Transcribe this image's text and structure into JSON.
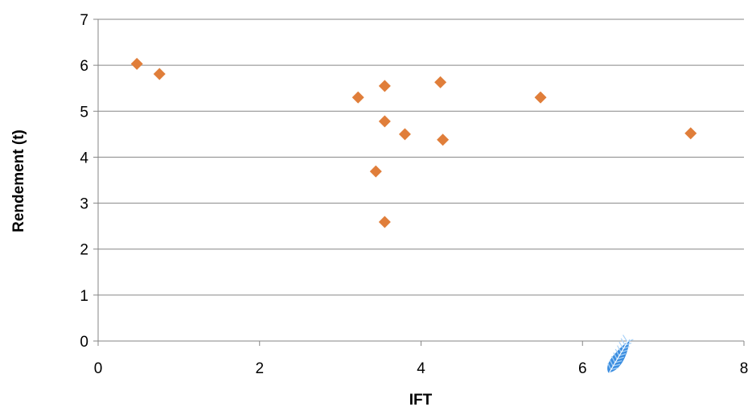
{
  "chart_data": {
    "type": "scatter",
    "title": "",
    "xlabel": "IFT",
    "ylabel": "Rendement (t)",
    "xlim": [
      0,
      8
    ],
    "ylim": [
      0,
      7
    ],
    "xticks": [
      0,
      2,
      4,
      6,
      8
    ],
    "yticks": [
      0,
      1,
      2,
      3,
      4,
      5,
      6,
      7
    ],
    "grid": "horizontal",
    "legend": "none",
    "series": [
      {
        "marker": "diamond",
        "color": "#E07E3A",
        "points": [
          {
            "x": 0.48,
            "y": 6.03
          },
          {
            "x": 0.76,
            "y": 5.81
          },
          {
            "x": 3.22,
            "y": 5.3
          },
          {
            "x": 3.55,
            "y": 5.55
          },
          {
            "x": 4.24,
            "y": 5.63
          },
          {
            "x": 3.55,
            "y": 4.78
          },
          {
            "x": 3.8,
            "y": 4.5
          },
          {
            "x": 4.27,
            "y": 4.38
          },
          {
            "x": 3.44,
            "y": 3.69
          },
          {
            "x": 3.55,
            "y": 2.59
          },
          {
            "x": 5.48,
            "y": 5.3
          },
          {
            "x": 7.34,
            "y": 4.52
          }
        ]
      }
    ]
  },
  "colors": {
    "marker": "#E07E3A",
    "gridline": "#868686",
    "axis": "#868686",
    "watermark": "#3C8EE0"
  },
  "watermark": {
    "icon": "blue-feather-icon"
  }
}
